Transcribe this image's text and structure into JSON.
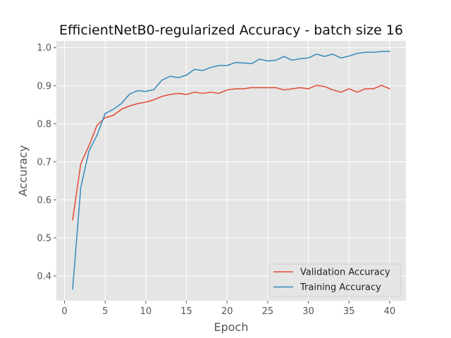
{
  "chart_data": {
    "type": "line",
    "title": "EfficientNetB0-regularized Accuracy - batch size 16",
    "xlabel": "Epoch",
    "ylabel": "Accuracy",
    "xlim": [
      -1,
      42
    ],
    "ylim": [
      0.335,
      1.018
    ],
    "xticks": [
      0,
      5,
      10,
      15,
      20,
      25,
      30,
      35,
      40
    ],
    "yticks": [
      0.4,
      0.5,
      0.6,
      0.7,
      0.8,
      0.9,
      1.0
    ],
    "ytick_labels": [
      "0.4",
      "0.5",
      "0.6",
      "0.7",
      "0.8",
      "0.9",
      "1.0"
    ],
    "grid": true,
    "style": "ggplot",
    "legend_position": "lower-right",
    "x": [
      1,
      2,
      3,
      4,
      5,
      6,
      7,
      8,
      9,
      10,
      11,
      12,
      13,
      14,
      15,
      16,
      17,
      18,
      19,
      20,
      21,
      22,
      23,
      24,
      25,
      26,
      27,
      28,
      29,
      30,
      31,
      32,
      33,
      34,
      35,
      36,
      37,
      38,
      39,
      40
    ],
    "series": [
      {
        "name": "Validation Accuracy",
        "color": "#E24A33",
        "values": [
          0.547,
          0.695,
          0.742,
          0.796,
          0.816,
          0.822,
          0.838,
          0.847,
          0.853,
          0.857,
          0.863,
          0.872,
          0.877,
          0.88,
          0.877,
          0.883,
          0.88,
          0.883,
          0.88,
          0.889,
          0.892,
          0.892,
          0.895,
          0.895,
          0.895,
          0.895,
          0.889,
          0.892,
          0.895,
          0.892,
          0.901,
          0.898,
          0.889,
          0.883,
          0.892,
          0.883,
          0.892,
          0.892,
          0.901,
          0.892
        ]
      },
      {
        "name": "Training Accuracy",
        "color": "#348ABD",
        "values": [
          0.365,
          0.632,
          0.728,
          0.77,
          0.827,
          0.838,
          0.853,
          0.878,
          0.887,
          0.885,
          0.89,
          0.915,
          0.925,
          0.921,
          0.928,
          0.943,
          0.94,
          0.948,
          0.953,
          0.953,
          0.961,
          0.96,
          0.958,
          0.97,
          0.965,
          0.967,
          0.977,
          0.967,
          0.971,
          0.973,
          0.983,
          0.977,
          0.983,
          0.973,
          0.978,
          0.985,
          0.988,
          0.988,
          0.99,
          0.99
        ]
      }
    ]
  }
}
